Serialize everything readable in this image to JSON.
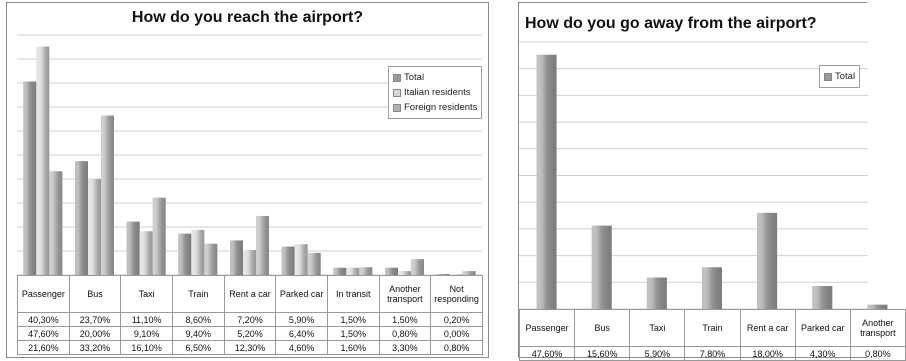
{
  "chart_data": [
    {
      "type": "bar",
      "title": "How  do you reach the airport?",
      "categories": [
        "Passenger",
        "Bus",
        "Taxi",
        "Train",
        "Rent a car",
        "Parked car",
        "In transit",
        "Another transport",
        "Not responding"
      ],
      "series": [
        {
          "name": "Total",
          "values": [
            40.3,
            23.7,
            11.1,
            8.6,
            7.2,
            5.9,
            1.5,
            1.5,
            0.2
          ],
          "labels": [
            "40,30%",
            "23,70%",
            "11,10%",
            "8,60%",
            "7,20%",
            "5,90%",
            "1,50%",
            "1,50%",
            "0,20%"
          ],
          "color": "#9a9a9a"
        },
        {
          "name": "Italian residents",
          "values": [
            47.6,
            20.0,
            9.1,
            9.4,
            5.2,
            6.4,
            1.5,
            0.8,
            0.0
          ],
          "labels": [
            "47,60%",
            "20,00%",
            "9,10%",
            "9,40%",
            "5,20%",
            "6,40%",
            "1,50%",
            "0,80%",
            "0,00%"
          ],
          "color": "#d6d6d6"
        },
        {
          "name": "Foreign residents",
          "values": [
            21.6,
            33.2,
            16.1,
            6.5,
            12.3,
            4.6,
            1.6,
            3.3,
            0.8
          ],
          "labels": [
            "21,60%",
            "33,20%",
            "16,10%",
            "6,50%",
            "12,30%",
            "4,60%",
            "1,60%",
            "3,30%",
            "0,80%"
          ],
          "color": "#b2b2b2"
        }
      ],
      "ylim": [
        0,
        50
      ],
      "grid": true,
      "legend": "right"
    },
    {
      "type": "bar",
      "title": "How  do you go away from the airport?",
      "categories": [
        "Passenger",
        "Bus",
        "Taxi",
        "Train",
        "Rent a car",
        "Parked car",
        "Another transport"
      ],
      "series": [
        {
          "name": "Total",
          "values": [
            47.6,
            15.6,
            5.9,
            7.8,
            18.0,
            4.3,
            0.8
          ],
          "labels": [
            "47,60%",
            "15,60%",
            "5,90%",
            "7,80%",
            "18,00%",
            "4,30%",
            "0,80%"
          ],
          "color": "#9a9a9a"
        }
      ],
      "ylim": [
        0,
        50
      ],
      "grid": true,
      "legend": "right"
    }
  ]
}
